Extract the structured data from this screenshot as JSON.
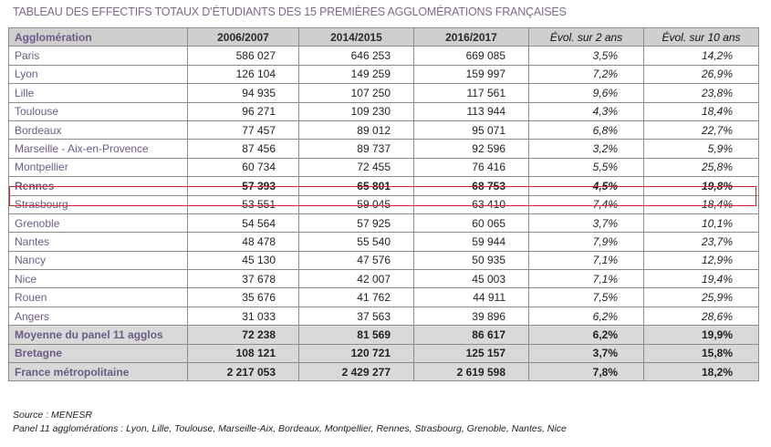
{
  "title": "TABLEAU DES EFFECTIFS TOTAUX D’ÉTUDIANTS DES 15 PREMIÈRES AGGLOMÉRATIONS FRANÇAISES",
  "headers": [
    "Agglomération",
    "2006/2007",
    "2014/2015",
    "2016/2017",
    "Évol. sur 2 ans",
    "Évol. sur 10 ans"
  ],
  "rows": [
    {
      "name": "Paris",
      "v2006": "586 027",
      "v2014": "646 253",
      "v2016": "669 085",
      "evol2": "3,5%",
      "evol10": "14,2%"
    },
    {
      "name": "Lyon",
      "v2006": "126 104",
      "v2014": "149 259",
      "v2016": "159 997",
      "evol2": "7,2%",
      "evol10": "26,9%"
    },
    {
      "name": "Lille",
      "v2006": "94 935",
      "v2014": "107 250",
      "v2016": "117 561",
      "evol2": "9,6%",
      "evol10": "23,8%"
    },
    {
      "name": "Toulouse",
      "v2006": "96 271",
      "v2014": "109 230",
      "v2016": "113 944",
      "evol2": "4,3%",
      "evol10": "18,4%"
    },
    {
      "name": "Bordeaux",
      "v2006": "77 457",
      "v2014": "89 012",
      "v2016": "95 071",
      "evol2": "6,8%",
      "evol10": "22,7%"
    },
    {
      "name": "Marseille - Aix-en-Provence",
      "v2006": "87 456",
      "v2014": "89 737",
      "v2016": "92 596",
      "evol2": "3,2%",
      "evol10": "5,9%"
    },
    {
      "name": "Montpellier",
      "v2006": "60 734",
      "v2014": "72 455",
      "v2016": "76 416",
      "evol2": "5,5%",
      "evol10": "25,8%"
    },
    {
      "name": "Rennes",
      "v2006": "57 393",
      "v2014": "65 801",
      "v2016": "68 753",
      "evol2": "4,5%",
      "evol10": "19,8%"
    },
    {
      "name": "Strasbourg",
      "v2006": "53 551",
      "v2014": "59 045",
      "v2016": "63 410",
      "evol2": "7,4%",
      "evol10": "18,4%"
    },
    {
      "name": "Grenoble",
      "v2006": "54 564",
      "v2014": "57 925",
      "v2016": "60 065",
      "evol2": "3,7%",
      "evol10": "10,1%"
    },
    {
      "name": "Nantes",
      "v2006": "48 478",
      "v2014": "55 540",
      "v2016": "59 944",
      "evol2": "7,9%",
      "evol10": "23,7%"
    },
    {
      "name": "Nancy",
      "v2006": "45 130",
      "v2014": "47 576",
      "v2016": "50 935",
      "evol2": "7,1%",
      "evol10": "12,9%"
    },
    {
      "name": "Nice",
      "v2006": "37 678",
      "v2014": "42 007",
      "v2016": "45 003",
      "evol2": "7,1%",
      "evol10": "19,4%"
    },
    {
      "name": "Rouen",
      "v2006": "35 676",
      "v2014": "41 762",
      "v2016": "44 911",
      "evol2": "7,5%",
      "evol10": "25,9%"
    },
    {
      "name": "Angers",
      "v2006": "31 033",
      "v2014": "37 563",
      "v2016": "39 896",
      "evol2": "6,2%",
      "evol10": "28,6%"
    }
  ],
  "summary": [
    {
      "name": "Moyenne du panel 11 agglos",
      "v2006": "72 238",
      "v2014": "81 569",
      "v2016": "86 617",
      "evol2": "6,2%",
      "evol10": "19,9%"
    },
    {
      "name": "Bretagne",
      "v2006": "108 121",
      "v2014": "120 721",
      "v2016": "125 157",
      "evol2": "3,7%",
      "evol10": "15,8%"
    },
    {
      "name": "France métropolitaine",
      "v2006": "2 217 053",
      "v2014": "2 429 277",
      "v2016": "2 619 598",
      "evol2": "7,8%",
      "evol10": "18,2%"
    }
  ],
  "notes": {
    "source": "Source : MENESR",
    "panel": "Panel 11 agglomérations : Lyon, Lille, Toulouse, Marseille-Aix, Bordeaux, Montpellier, Rennes, Strasbourg, Grenoble, Nantes, Nice"
  },
  "colors": {
    "header_bg": "#cfcfcf",
    "summary_bg": "#d9d9d9",
    "name_text": "#6b5b86",
    "highlight_border": "#d2232a"
  }
}
